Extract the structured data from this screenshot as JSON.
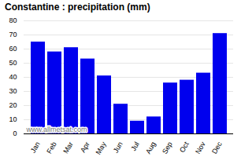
{
  "chart_data": {
    "type": "bar",
    "title": "Constantine : precipitation (mm)",
    "categories": [
      "Jan",
      "Feb",
      "Mar",
      "Apr",
      "May",
      "Jun",
      "Jul",
      "Aug",
      "Sep",
      "Oct",
      "Nov",
      "Dec"
    ],
    "values": [
      65,
      58,
      61,
      53,
      41,
      21,
      9,
      12,
      36,
      38,
      43,
      71
    ],
    "color": "#0000ee",
    "ylim": [
      0,
      80
    ],
    "yticks": [
      0,
      10,
      20,
      30,
      40,
      50,
      60,
      70,
      80
    ],
    "grid": true,
    "annotations": [
      "www.allmetsat.com"
    ]
  }
}
